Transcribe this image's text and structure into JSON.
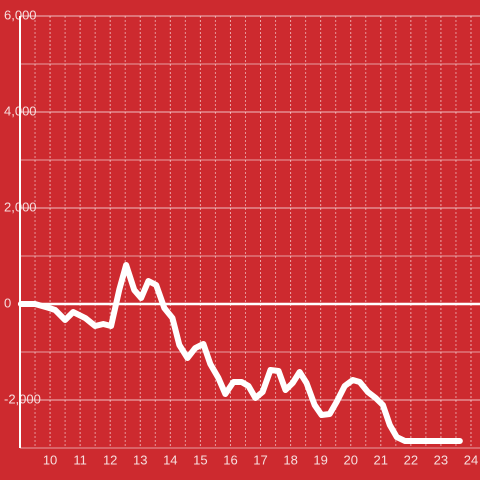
{
  "chart_data": {
    "type": "line",
    "x": [
      9.03,
      9.5,
      9.97,
      10.17,
      10.5,
      10.77,
      11.17,
      11.5,
      11.77,
      12.03,
      12.3,
      12.53,
      12.8,
      13.03,
      13.27,
      13.53,
      13.8,
      14.07,
      14.3,
      14.57,
      14.83,
      15.1,
      15.33,
      15.6,
      15.83,
      16.1,
      16.37,
      16.6,
      16.83,
      17.07,
      17.33,
      17.6,
      17.83,
      18.07,
      18.3,
      18.53,
      18.8,
      19.03,
      19.3,
      19.53,
      19.8,
      20.07,
      20.3,
      20.57,
      20.83,
      21.07,
      21.3,
      21.53,
      21.8,
      22.13,
      23.63
    ],
    "series": [
      {
        "color": "#ffffff",
        "values": [
          0,
          0,
          -83,
          -125,
          -333,
          -167,
          -292,
          -458,
          -417,
          -458,
          292,
          813,
          292,
          125,
          479,
          396,
          -83,
          -292,
          -854,
          -1125,
          -917,
          -833,
          -1250,
          -1542,
          -1875,
          -1625,
          -1625,
          -1708,
          -1958,
          -1833,
          -1375,
          -1396,
          -1792,
          -1646,
          -1417,
          -1646,
          -2104,
          -2313,
          -2292,
          -2042,
          -1708,
          -1583,
          -1625,
          -1833,
          -1958,
          -2104,
          -2521,
          -2771,
          -2854,
          -2854,
          -2854
        ]
      }
    ],
    "xlim": [
      9,
      24.3
    ],
    "xticks": [
      10,
      11,
      12,
      13,
      14,
      15,
      16,
      17,
      18,
      19,
      20,
      21,
      22,
      23,
      24
    ],
    "ylim": [
      -3000,
      6000
    ],
    "yticks": [
      {
        "value": -2000,
        "label": "-2,000"
      },
      0,
      {
        "value": 2000,
        "label": "2,000"
      },
      {
        "value": 4000,
        "label": "4,000"
      },
      {
        "value": 6000,
        "label": "6,000"
      }
    ],
    "minor_yticks": [
      -3000,
      -1000,
      1000,
      3000,
      5000
    ],
    "minor_xticks": [
      9.5,
      10.5,
      11.5,
      12.5,
      13.5,
      14.5,
      15.5,
      16.5,
      17.5,
      18.5,
      19.5,
      20.5,
      21.5,
      22.5,
      23.5
    ],
    "grid": true
  }
}
